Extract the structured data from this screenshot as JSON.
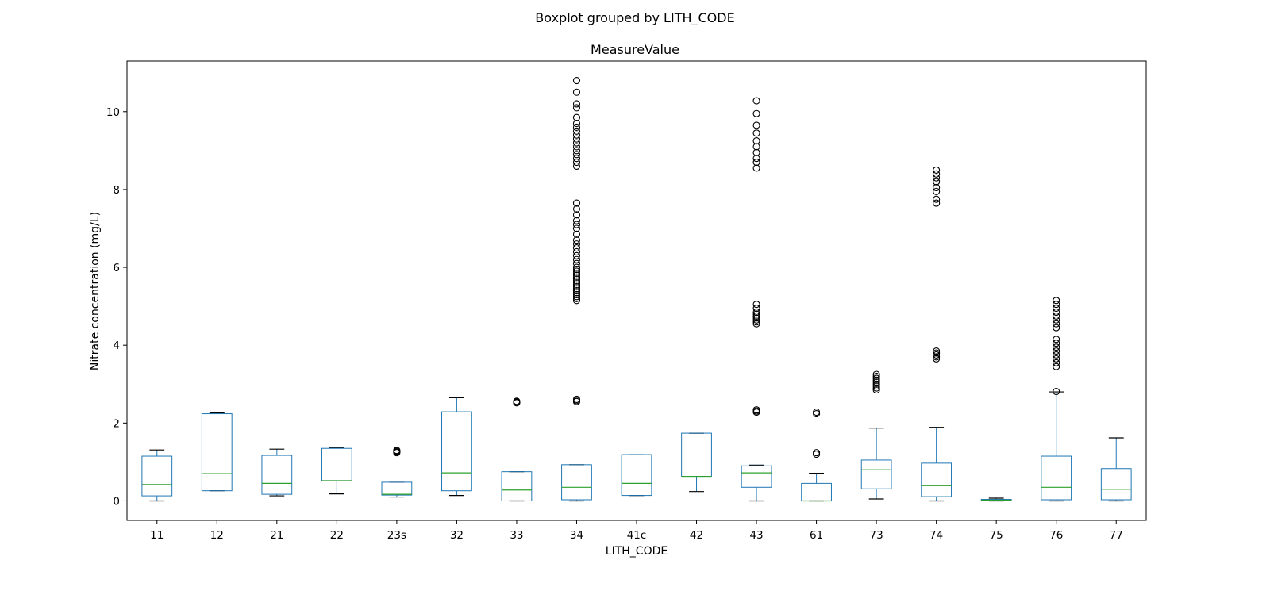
{
  "figure": {
    "suptitle": "Boxplot grouped by LITH_CODE"
  },
  "chart_data": {
    "type": "box",
    "title": "MeasureValue",
    "xlabel": "LITH_CODE",
    "ylabel": "Nitrate concentration (mg/L)",
    "ylim": [
      -0.5,
      11.3
    ],
    "yticks": [
      0,
      2,
      4,
      6,
      8,
      10
    ],
    "grid": false,
    "colors": {
      "box": "#1f77b4",
      "whisker": "#1f77b4",
      "cap": "#000000",
      "median": "#2ca02c",
      "flier": "#000000"
    },
    "categories": [
      "11",
      "12",
      "21",
      "22",
      "23s",
      "32",
      "33",
      "34",
      "41c",
      "42",
      "43",
      "61",
      "73",
      "74",
      "75",
      "76",
      "77"
    ],
    "boxes": [
      {
        "category": "11",
        "whislo": 0.0,
        "q1": 0.13,
        "med": 0.42,
        "q3": 1.15,
        "whishi": 1.31,
        "fliers": []
      },
      {
        "category": "12",
        "whislo": 0.26,
        "q1": 0.26,
        "med": 0.7,
        "q3": 2.24,
        "whishi": 2.26,
        "fliers": []
      },
      {
        "category": "21",
        "whislo": 0.13,
        "q1": 0.17,
        "med": 0.45,
        "q3": 1.17,
        "whishi": 1.33,
        "fliers": []
      },
      {
        "category": "22",
        "whislo": 0.18,
        "q1": 0.52,
        "med": 0.52,
        "q3": 1.35,
        "whishi": 1.37,
        "fliers": []
      },
      {
        "category": "23s",
        "whislo": 0.1,
        "q1": 0.15,
        "med": 0.17,
        "q3": 0.48,
        "whishi": 0.48,
        "fliers": [
          1.24,
          1.26,
          1.28,
          1.3
        ]
      },
      {
        "category": "32",
        "whislo": 0.14,
        "q1": 0.26,
        "med": 0.72,
        "q3": 2.29,
        "whishi": 2.65,
        "fliers": []
      },
      {
        "category": "33",
        "whislo": 0.0,
        "q1": 0.0,
        "med": 0.28,
        "q3": 0.75,
        "whishi": 0.75,
        "fliers": [
          2.52,
          2.54,
          2.56
        ]
      },
      {
        "category": "34",
        "whislo": 0.0,
        "q1": 0.03,
        "med": 0.35,
        "q3": 0.93,
        "whishi": 0.93,
        "fliers": [
          2.55,
          2.58,
          2.61,
          5.15,
          5.2,
          5.25,
          5.3,
          5.35,
          5.4,
          5.45,
          5.5,
          5.55,
          5.6,
          5.65,
          5.7,
          5.75,
          5.8,
          5.85,
          5.9,
          5.95,
          6.0,
          6.1,
          6.2,
          6.3,
          6.4,
          6.5,
          6.6,
          6.7,
          6.85,
          7.0,
          7.1,
          7.2,
          7.35,
          7.5,
          7.65,
          8.6,
          8.7,
          8.8,
          8.9,
          9.0,
          9.1,
          9.2,
          9.3,
          9.4,
          9.5,
          9.6,
          9.7,
          9.85,
          10.1,
          10.2,
          10.5,
          10.8
        ]
      },
      {
        "category": "41c",
        "whislo": 0.14,
        "q1": 0.14,
        "med": 0.45,
        "q3": 1.19,
        "whishi": 1.19,
        "fliers": []
      },
      {
        "category": "42",
        "whislo": 0.24,
        "q1": 0.63,
        "med": 0.63,
        "q3": 1.74,
        "whishi": 1.74,
        "fliers": []
      },
      {
        "category": "43",
        "whislo": 0.0,
        "q1": 0.35,
        "med": 0.72,
        "q3": 0.9,
        "whishi": 0.92,
        "fliers": [
          2.28,
          2.31,
          2.34,
          4.55,
          4.6,
          4.65,
          4.7,
          4.75,
          4.8,
          4.85,
          4.95,
          5.05,
          8.55,
          8.7,
          8.8,
          8.95,
          9.1,
          9.25,
          9.45,
          9.65,
          9.95,
          10.28
        ]
      },
      {
        "category": "61",
        "whislo": 0.0,
        "q1": 0.0,
        "med": 0.0,
        "q3": 0.45,
        "whishi": 0.71,
        "fliers": [
          1.2,
          1.24,
          2.24,
          2.28
        ]
      },
      {
        "category": "73",
        "whislo": 0.05,
        "q1": 0.31,
        "med": 0.8,
        "q3": 1.05,
        "whishi": 1.87,
        "fliers": [
          2.85,
          2.9,
          2.95,
          3.0,
          3.05,
          3.1,
          3.15,
          3.2,
          3.25
        ]
      },
      {
        "category": "74",
        "whislo": 0.0,
        "q1": 0.11,
        "med": 0.39,
        "q3": 0.97,
        "whishi": 1.89,
        "fliers": [
          3.65,
          3.7,
          3.75,
          3.8,
          3.85,
          7.65,
          7.75,
          7.95,
          8.05,
          8.2,
          8.3,
          8.4,
          8.5
        ]
      },
      {
        "category": "75",
        "whislo": 0.0,
        "q1": 0.0,
        "med": 0.02,
        "q3": 0.04,
        "whishi": 0.07,
        "fliers": []
      },
      {
        "category": "76",
        "whislo": 0.0,
        "q1": 0.03,
        "med": 0.35,
        "q3": 1.15,
        "whishi": 2.8,
        "fliers": [
          2.81,
          3.45,
          3.55,
          3.65,
          3.75,
          3.85,
          3.95,
          4.05,
          4.15,
          4.45,
          4.55,
          4.65,
          4.75,
          4.85,
          4.95,
          5.05,
          5.15
        ]
      },
      {
        "category": "77",
        "whislo": 0.0,
        "q1": 0.03,
        "med": 0.3,
        "q3": 0.83,
        "whishi": 1.62,
        "fliers": []
      }
    ]
  }
}
